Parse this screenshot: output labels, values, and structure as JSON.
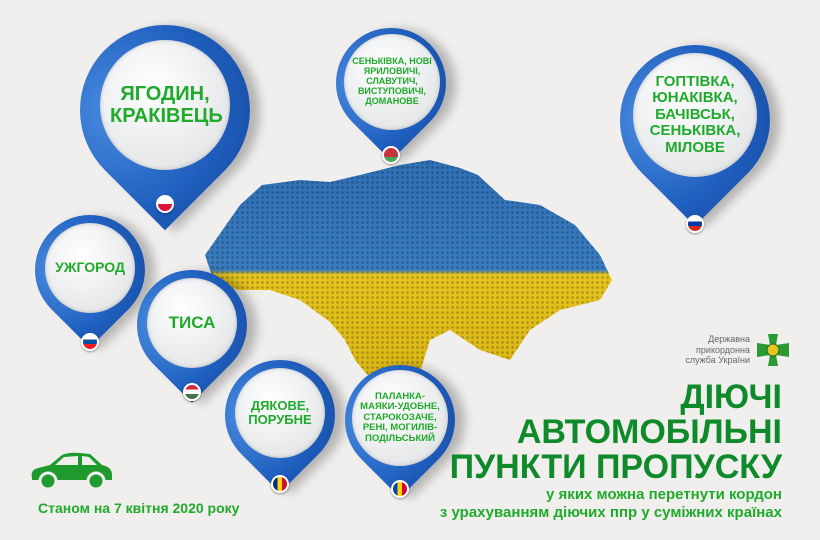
{
  "pins": [
    {
      "text": "ЯГОДИН, КРАКІВЕЦЬ",
      "country_flag": "poland",
      "flag_colors": [
        "#ffffff",
        "#dc143c"
      ]
    },
    {
      "text": "СЕНЬКІВКА, НОВІ ЯРИЛОВИЧІ, СЛАВУТИЧ, ВИСТУПОВИЧІ, ДОМАНОВЕ",
      "country_flag": "belarus",
      "flag_colors": [
        "#c8313e",
        "#4aa657"
      ]
    },
    {
      "text": "ГОПТІВКА, ЮНАКІВКА, БАЧІВСЬК, СЕНЬКІВКА, МІЛОВЕ",
      "country_flag": "russia",
      "flag_colors": [
        "#ffffff",
        "#0039a6",
        "#d52b1e"
      ]
    },
    {
      "text": "УЖГОРОД",
      "country_flag": "slovakia",
      "flag_colors": [
        "#ffffff",
        "#0b4ea2",
        "#ee1c25"
      ]
    },
    {
      "text": "ТИСА",
      "country_flag": "hungary",
      "flag_colors": [
        "#ce2939",
        "#ffffff",
        "#477050"
      ]
    },
    {
      "text": "ДЯКОВЕ, ПОРУБНЕ",
      "country_flag": "romania",
      "flag_colors": [
        "#002b7f",
        "#fcd116",
        "#ce1126"
      ]
    },
    {
      "text": "ПАЛАНКА-МАЯКИ-УДОБНЕ, СТАРОКОЗАЧЕ, РЕНІ, МОГИЛІВ-ПОДІЛЬСЬКИЙ",
      "country_flag": "moldova",
      "flag_colors": [
        "#0046ae",
        "#ffd200",
        "#cc092f"
      ]
    }
  ],
  "logo": {
    "text": "Державна прикордонна служба України",
    "icon": "border-guard-cross-icon"
  },
  "heading": {
    "line1": "ДІЮЧІ",
    "line2": "АВТОМОБІЛЬНІ",
    "line3": "ПУНКТИ ПРОПУСКУ",
    "sub1": "у яких можна перетнути кордон",
    "sub2": "з урахуванням діючих ппр у суміжних країнах"
  },
  "date_note": "Станом на 7 квітня 2020 року",
  "car_icon": "car-icon",
  "colors": {
    "pin": "#1f5fbf",
    "text_green": "#1faa2b",
    "heading_green": "#0f8a2a",
    "map_blue": "#2f6fb5",
    "map_yellow": "#e6c51f"
  }
}
